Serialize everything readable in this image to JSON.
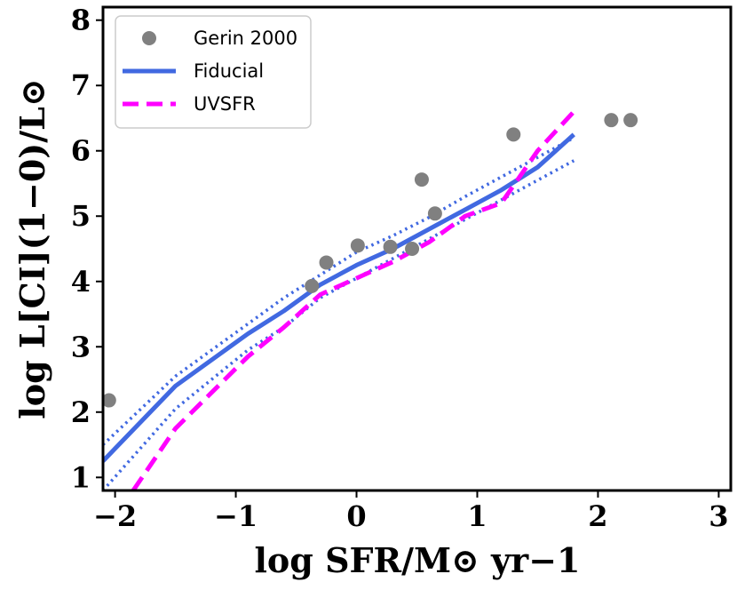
{
  "chart_data": {
    "type": "line",
    "xlabel": "log SFR/M⊙ yr−1",
    "ylabel": "log L[CI](1−0)/L⊙",
    "xlim": [
      -2.1,
      3.1
    ],
    "ylim": [
      0.8,
      8.2
    ],
    "xticks": [
      "−2",
      "−1",
      "0",
      "1",
      "2",
      "3"
    ],
    "yticks": [
      "1",
      "2",
      "3",
      "4",
      "5",
      "6",
      "7",
      "8"
    ],
    "xtick_values": [
      -2,
      -1,
      0,
      1,
      2,
      3
    ],
    "ytick_values": [
      1,
      2,
      3,
      4,
      5,
      6,
      7,
      8
    ],
    "legend_position": "upper-left",
    "series": [
      {
        "name": "Gerin 2000",
        "kind": "scatter",
        "color": "#808080",
        "x": [
          -2.05,
          -0.37,
          -0.25,
          0.01,
          0.28,
          0.46,
          0.54,
          0.65,
          1.3,
          2.11,
          2.27
        ],
        "y": [
          2.18,
          3.93,
          4.29,
          4.55,
          4.53,
          4.5,
          5.56,
          5.04,
          6.25,
          6.47,
          6.47
        ]
      },
      {
        "name": "Fiducial",
        "kind": "line",
        "style": "solid",
        "color": "#4169e1",
        "x": [
          -2.1,
          -1.5,
          -0.9,
          -0.6,
          -0.3,
          0.0,
          0.3,
          0.6,
          0.9,
          1.2,
          1.5,
          1.8
        ],
        "y": [
          1.25,
          2.4,
          3.2,
          3.55,
          3.95,
          4.25,
          4.5,
          4.8,
          5.1,
          5.4,
          5.75,
          6.25
        ]
      },
      {
        "name": "",
        "kind": "line",
        "style": "dotted",
        "color": "#4169e1",
        "x": [
          -2.1,
          -1.5,
          -0.9,
          -0.6,
          -0.3,
          0.0,
          0.3,
          0.6,
          0.9,
          1.2,
          1.5,
          1.8
        ],
        "y": [
          1.5,
          2.55,
          3.35,
          3.75,
          4.1,
          4.45,
          4.7,
          4.98,
          5.3,
          5.6,
          5.9,
          6.2
        ]
      },
      {
        "name": "",
        "kind": "line",
        "style": "dotted",
        "color": "#4169e1",
        "x": [
          -2.1,
          -1.5,
          -0.9,
          -0.6,
          -0.3,
          0.0,
          0.3,
          0.6,
          0.9,
          1.2,
          1.5,
          1.8
        ],
        "y": [
          0.8,
          2.05,
          2.95,
          3.3,
          3.75,
          4.05,
          4.35,
          4.65,
          4.95,
          5.25,
          5.55,
          5.85
        ]
      },
      {
        "name": "UVSFR",
        "kind": "line",
        "style": "dashed",
        "color": "#ff00ff",
        "x": [
          -1.85,
          -1.5,
          -1.2,
          -0.9,
          -0.6,
          -0.3,
          0.0,
          0.3,
          0.6,
          0.9,
          1.2,
          1.5,
          1.8
        ],
        "y": [
          0.8,
          1.75,
          2.3,
          2.85,
          3.3,
          3.8,
          4.05,
          4.3,
          4.6,
          5.0,
          5.2,
          6.0,
          6.6
        ]
      }
    ]
  }
}
